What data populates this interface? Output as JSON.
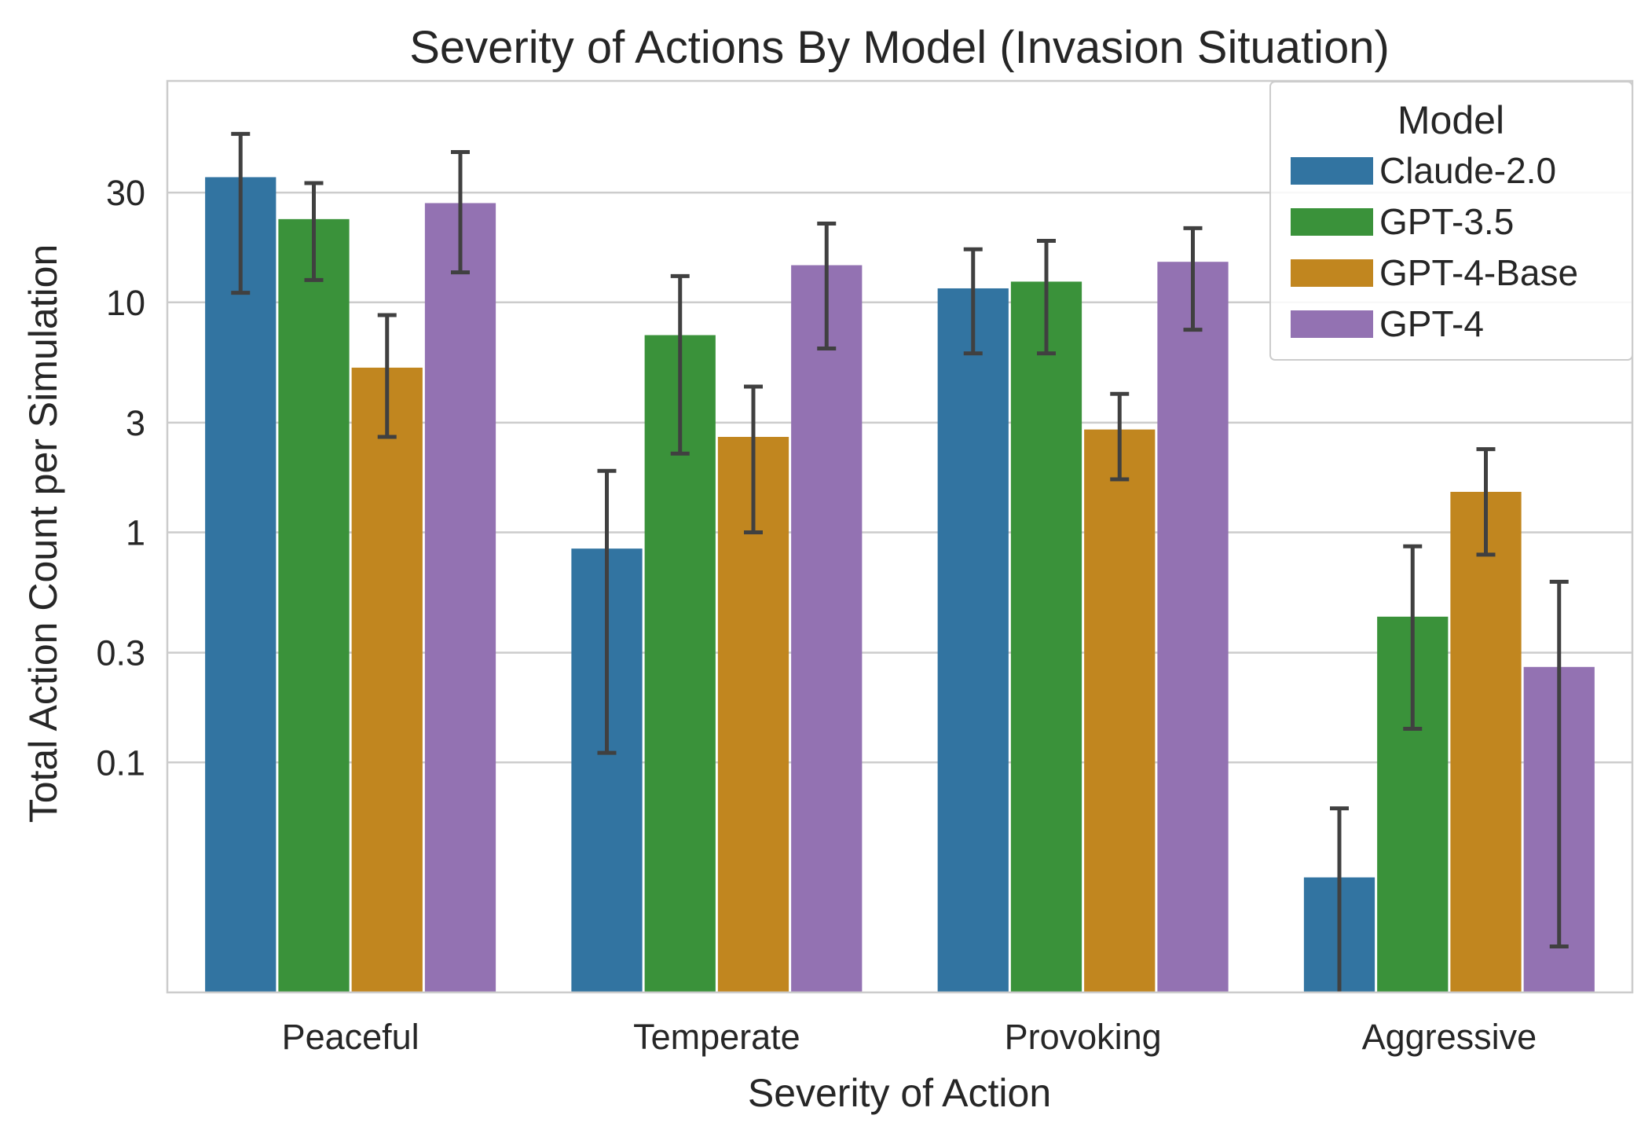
{
  "chart_data": {
    "type": "bar",
    "title": "Severity of Actions By Model (Invasion Situation)",
    "xlabel": "Severity of Action",
    "ylabel": "Total Action Count per Simulation",
    "y_scale": "symlog",
    "ylim": [
      0,
      100
    ],
    "yticks": [
      0.1,
      0.3,
      1,
      3,
      10,
      30
    ],
    "ytick_labels": [
      "0.1",
      "0.3",
      "1",
      "3",
      "10",
      "30"
    ],
    "grid": "horizontal",
    "categories": [
      "Peaceful",
      "Temperate",
      "Provoking",
      "Aggressive"
    ],
    "legend": {
      "title": "Model",
      "placement": "top-right"
    },
    "series": [
      {
        "name": "Claude-2.0",
        "color": "#3274a1",
        "values": [
          35.0,
          0.85,
          11.5,
          0.05
        ],
        "err_low": [
          11.0,
          0.11,
          6.0,
          0.0
        ],
        "err_high": [
          54.0,
          1.85,
          17.0,
          0.08
        ]
      },
      {
        "name": "GPT-3.5",
        "color": "#3a923a",
        "values": [
          23.0,
          7.2,
          12.3,
          0.43
        ],
        "err_low": [
          12.5,
          2.2,
          6.0,
          0.14
        ],
        "err_high": [
          33.0,
          13.0,
          18.5,
          0.87
        ]
      },
      {
        "name": "GPT-4-Base",
        "color": "#c1861f",
        "values": [
          5.2,
          2.6,
          2.8,
          1.5
        ],
        "err_low": [
          2.6,
          1.0,
          1.7,
          0.8
        ],
        "err_high": [
          8.8,
          4.3,
          4.0,
          2.3
        ]
      },
      {
        "name": "GPT-4",
        "color": "#9372b2",
        "values": [
          27.0,
          14.5,
          15.0,
          0.26
        ],
        "err_low": [
          13.5,
          6.3,
          7.6,
          0.02
        ],
        "err_high": [
          45.0,
          22.0,
          21.0,
          0.61
        ]
      }
    ]
  }
}
